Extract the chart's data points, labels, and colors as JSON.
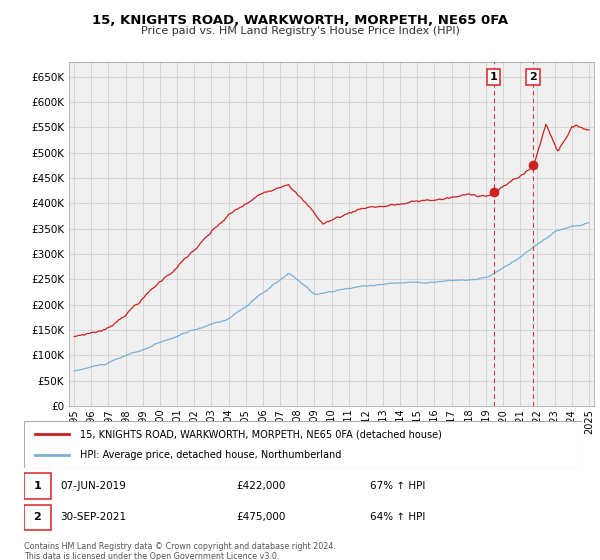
{
  "title": "15, KNIGHTS ROAD, WARKWORTH, MORPETH, NE65 0FA",
  "subtitle": "Price paid vs. HM Land Registry's House Price Index (HPI)",
  "legend_property": "15, KNIGHTS ROAD, WARKWORTH, MORPETH, NE65 0FA (detached house)",
  "legend_hpi": "HPI: Average price, detached house, Northumberland",
  "footnote": "Contains HM Land Registry data © Crown copyright and database right 2024.\nThis data is licensed under the Open Government Licence v3.0.",
  "transaction1_date": "07-JUN-2019",
  "transaction1_price": "£422,000",
  "transaction1_hpi": "67% ↑ HPI",
  "transaction2_date": "30-SEP-2021",
  "transaction2_price": "£475,000",
  "transaction2_hpi": "64% ↑ HPI",
  "property_color": "#cc2222",
  "hpi_color": "#7bafd4",
  "vline_color": "#dd3333",
  "background_color": "#ffffff",
  "grid_color": "#cccccc",
  "plot_bg": "#f0f0f0",
  "ylim": [
    0,
    680000
  ],
  "ytick_vals": [
    0,
    50000,
    100000,
    150000,
    200000,
    250000,
    300000,
    350000,
    400000,
    450000,
    500000,
    550000,
    600000,
    650000
  ],
  "ytick_labels": [
    "£0",
    "£50K",
    "£100K",
    "£150K",
    "£200K",
    "£250K",
    "£300K",
    "£350K",
    "£400K",
    "£450K",
    "£500K",
    "£550K",
    "£600K",
    "£650K"
  ],
  "t1_year": 2019.458,
  "t2_year": 2021.75,
  "t1_price": 422000,
  "t2_price": 475000
}
